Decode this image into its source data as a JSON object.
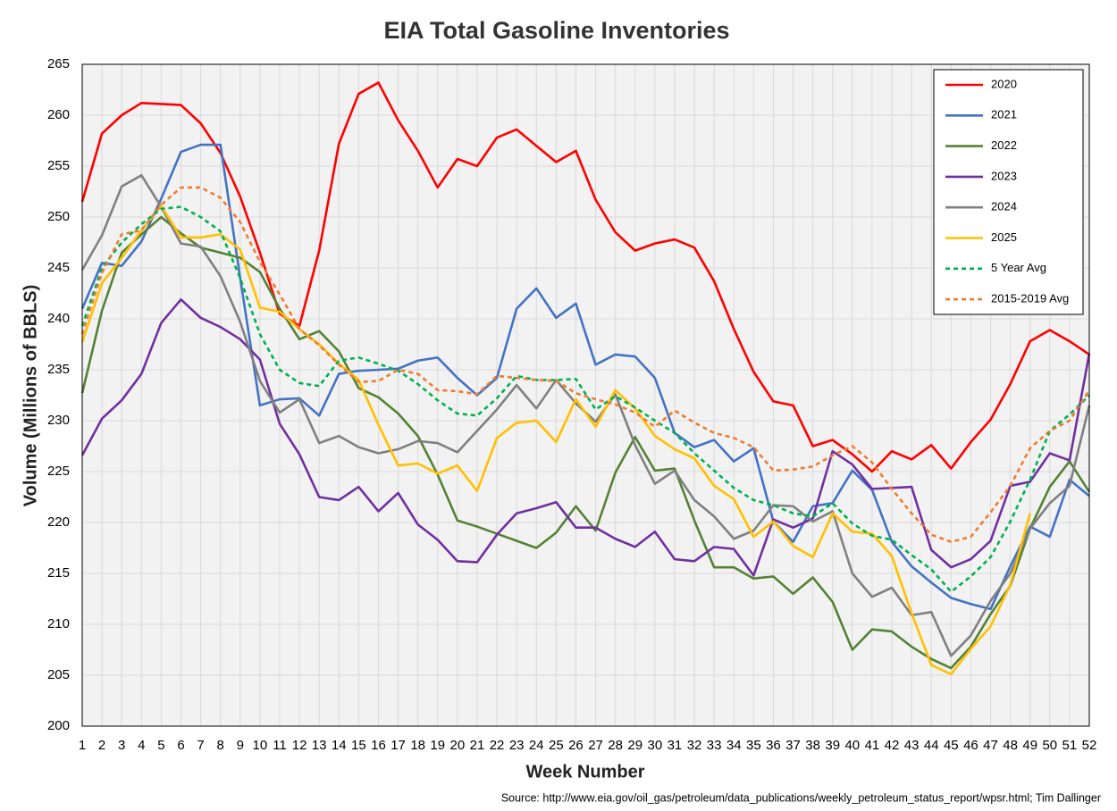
{
  "chart_data": {
    "type": "line",
    "title": "EIA Total Gasoline Inventories",
    "xlabel": "Week Number",
    "ylabel": "Volume (Millions of BBLS)",
    "source": "Source: http://www.eia.gov/oil_gas/petroleum/data_publications/weekly_petroleum_status_report/wpsr.html; Tim Dallinger",
    "x": [
      1,
      2,
      3,
      4,
      5,
      6,
      7,
      8,
      9,
      10,
      11,
      12,
      13,
      14,
      15,
      16,
      17,
      18,
      19,
      20,
      21,
      22,
      23,
      24,
      25,
      26,
      27,
      28,
      29,
      30,
      31,
      32,
      33,
      34,
      35,
      36,
      37,
      38,
      39,
      40,
      41,
      42,
      43,
      44,
      45,
      46,
      47,
      48,
      49,
      50,
      51,
      52
    ],
    "xlim": [
      1,
      52
    ],
    "xticks": [
      1,
      2,
      3,
      4,
      5,
      6,
      7,
      8,
      9,
      10,
      11,
      12,
      13,
      14,
      15,
      16,
      17,
      18,
      19,
      20,
      21,
      22,
      23,
      24,
      25,
      26,
      27,
      28,
      29,
      30,
      31,
      32,
      33,
      34,
      35,
      36,
      37,
      38,
      39,
      40,
      41,
      42,
      43,
      44,
      45,
      46,
      47,
      48,
      49,
      50,
      51,
      52
    ],
    "ylim": [
      200,
      265
    ],
    "yticks": [
      200,
      205,
      210,
      215,
      220,
      225,
      230,
      235,
      240,
      245,
      250,
      255,
      260,
      265
    ],
    "grid": true,
    "legend": "top-right",
    "series": [
      {
        "name": "2020",
        "color": "#ff0000",
        "dashed": false,
        "values": [
          251.5,
          258.2,
          260,
          261.2,
          261.1,
          261,
          259.2,
          256.3,
          252,
          246.5,
          240.5,
          239.3,
          246.7,
          257.2,
          262.1,
          263.2,
          259.5,
          256.5,
          252.9,
          255.7,
          255,
          257.8,
          258.6,
          257,
          255.4,
          256.5,
          251.7,
          248.5,
          246.7,
          247.4,
          247.8,
          247,
          243.7,
          239,
          234.8,
          231.9,
          231.5,
          227.5,
          228.1,
          226.7,
          225,
          227,
          226.2,
          227.6,
          225.3,
          227.9,
          230.1,
          233.6,
          237.8,
          238.9,
          237.8,
          236.5
        ]
      },
      {
        "name": "2021",
        "color": "#4472c4",
        "dashed": false,
        "values": [
          241,
          245.5,
          245.2,
          247.6,
          251.8,
          256.4,
          257.1,
          257.1,
          244,
          231.5,
          232.1,
          232.2,
          230.5,
          234.6,
          234.9,
          235,
          235.1,
          235.9,
          236.2,
          234.2,
          232.5,
          234.2,
          241,
          243,
          240.1,
          241.5,
          235.5,
          236.5,
          236.3,
          234.2,
          228.8,
          227.4,
          228.1,
          226,
          227.3,
          220.1,
          218.1,
          221.6,
          221.9,
          225.1,
          223.2,
          218.1,
          215.7,
          214.1,
          212.6,
          212,
          211.5,
          215.7,
          219.6,
          218.6,
          224.2,
          222.6
        ]
      },
      {
        "name": "2022",
        "color": "#548235",
        "dashed": false,
        "values": [
          232.7,
          240.8,
          246.5,
          248.3,
          250,
          248.4,
          247,
          246.5,
          246,
          244.6,
          241,
          238,
          238.8,
          236.8,
          233.2,
          232.3,
          230.7,
          228.5,
          224.7,
          220.2,
          219.6,
          218.9,
          218.2,
          217.5,
          219,
          221.6,
          219.2,
          224.9,
          228.4,
          225.1,
          225.3,
          220.2,
          215.6,
          215.6,
          214.5,
          214.7,
          213,
          214.6,
          212.2,
          207.5,
          209.5,
          209.3,
          207.8,
          206.6,
          205.7,
          207.8,
          211,
          213.8,
          219.4,
          223.5,
          226,
          223
        ]
      },
      {
        "name": "2023",
        "color": "#7030a0",
        "dashed": false,
        "values": [
          226.6,
          230.2,
          232,
          234.6,
          239.6,
          241.9,
          240.1,
          239.2,
          238,
          236,
          229.7,
          226.7,
          222.5,
          222.2,
          223.5,
          221.1,
          222.9,
          219.8,
          218.3,
          216.2,
          216.1,
          218.8,
          220.9,
          221.4,
          222,
          219.5,
          219.5,
          218.4,
          217.6,
          219.1,
          216.4,
          216.2,
          217.6,
          217.4,
          214.8,
          220.3,
          219.5,
          220.4,
          227,
          225.7,
          223.3,
          223.4,
          223.5,
          217.3,
          215.6,
          216.4,
          218.2,
          223.6,
          224,
          226.8,
          226.1,
          236.6
        ]
      },
      {
        "name": "2024",
        "color": "#808080",
        "dashed": false,
        "values": [
          244.8,
          248.2,
          253,
          254.1,
          251,
          247.4,
          247.1,
          244.2,
          239.7,
          233.9,
          230.8,
          232.1,
          227.8,
          228.5,
          227.4,
          226.8,
          227.2,
          228,
          227.8,
          226.9,
          229,
          231.1,
          233.5,
          231.2,
          234,
          231.7,
          229.9,
          232.6,
          227.6,
          223.8,
          225.1,
          222.2,
          220.6,
          218.4,
          219.2,
          221.7,
          221.6,
          220.1,
          221.1,
          215,
          212.7,
          213.6,
          210.9,
          211.2,
          206.9,
          208.9,
          212.3,
          215,
          219.4,
          221.9,
          223.6,
          231.5
        ]
      },
      {
        "name": "2025",
        "color": "#ffc000",
        "dashed": false,
        "values": [
          237.7,
          243.5,
          246,
          248.7,
          251.1,
          248,
          248,
          248.3,
          246.8,
          241.1,
          240.7,
          239,
          237.5,
          235.6,
          234,
          229.6,
          225.6,
          225.8,
          224.8,
          225.6,
          223.1,
          228.3,
          229.8,
          230,
          227.9,
          232.1,
          229.4,
          233,
          231.2,
          228.5,
          227.2,
          226.3,
          223.6,
          222.3,
          218.6,
          220.1,
          217.7,
          216.6,
          220.9,
          219.1,
          218.9,
          216.7,
          211.1,
          206,
          205.1,
          207.6,
          209.8,
          213.9,
          220.9,
          null,
          null,
          null
        ]
      },
      {
        "name": "5 Year Avg",
        "color": "#00b050",
        "dashed": true,
        "values": [
          239.3,
          245,
          247.5,
          249.3,
          250.8,
          251,
          250,
          248.6,
          244,
          238.5,
          235,
          233.7,
          233.4,
          235.9,
          236.2,
          235.6,
          234.9,
          233.6,
          232,
          230.7,
          230.5,
          232.2,
          234.4,
          234,
          234,
          234.1,
          231.1,
          232.4,
          231.3,
          230,
          228.8,
          226.8,
          225.1,
          223.4,
          222.2,
          221.7,
          220.9,
          220.6,
          221.9,
          219.9,
          218.7,
          218.3,
          216.8,
          215.4,
          213.2,
          214.7,
          216.6,
          220.1,
          224.2,
          229,
          230.6,
          232.5
        ]
      },
      {
        "name": "2015-2019 Avg",
        "color": "#ed7d31",
        "dashed": true,
        "values": [
          238.5,
          244.5,
          248.3,
          248.7,
          251.2,
          252.9,
          252.9,
          251.9,
          249.5,
          245.6,
          242.4,
          239,
          237.4,
          235.5,
          233.8,
          233.9,
          235,
          234.6,
          233,
          232.9,
          232.6,
          234.4,
          234.2,
          234,
          233.9,
          232.7,
          232.1,
          231.6,
          230.8,
          229.4,
          231,
          229.8,
          228.8,
          228.3,
          227.4,
          225.1,
          225.2,
          225.5,
          226.6,
          227.5,
          225.9,
          223.3,
          220.9,
          218.8,
          218.1,
          218.6,
          221,
          223.6,
          227.3,
          229,
          230,
          233
        ]
      }
    ]
  }
}
